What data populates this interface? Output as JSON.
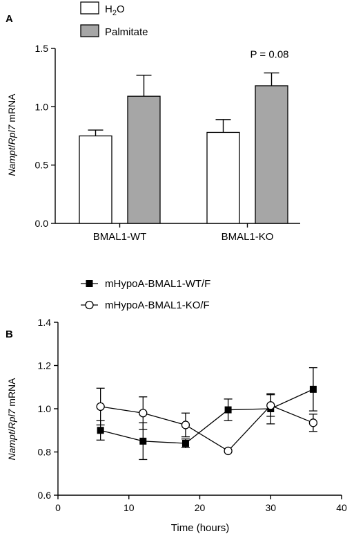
{
  "chart_data": [
    {
      "type": "bar",
      "panel_label": "A",
      "categories": [
        "BMAL1-WT",
        "BMAL1-KO"
      ],
      "series": [
        {
          "name_parts": [
            "H",
            "2",
            "O"
          ],
          "color": "#ffffff",
          "values": [
            0.75,
            0.78
          ],
          "errors": [
            0.05,
            0.11
          ]
        },
        {
          "name": "Palmitate",
          "color": "#a6a6a6",
          "values": [
            1.09,
            1.18
          ],
          "errors": [
            0.18,
            0.11
          ]
        }
      ],
      "ylabel_italic_1": "Nampt",
      "ylabel_sep": "/",
      "ylabel_italic_2": "Rpl7",
      "ylabel_plain": " mRNA",
      "ylim": [
        0,
        1.5
      ],
      "yticks": [
        "0.0",
        "0.5",
        "1.0",
        "1.5"
      ],
      "annotation": {
        "text": "P = 0.08",
        "category_index": 1,
        "series_index": 1
      },
      "legend": "top-left",
      "grid": false
    },
    {
      "type": "line",
      "panel_label": "B",
      "series": [
        {
          "name": "mHypoA-BMAL1-WT/F",
          "marker": "filled-square",
          "x": [
            6,
            12,
            18,
            24,
            30,
            36
          ],
          "y": [
            0.9,
            0.85,
            0.84,
            0.995,
            1.0,
            1.09
          ],
          "errors": [
            0.045,
            0.085,
            0.02,
            0.05,
            0.07,
            0.1
          ]
        },
        {
          "name": "mHypoA-BMAL1-KO/F",
          "marker": "open-circle",
          "x": [
            6,
            12,
            18,
            24,
            30,
            36
          ],
          "y": [
            1.01,
            0.98,
            0.925,
            0.805,
            1.015,
            0.935
          ],
          "errors": [
            0.085,
            0.075,
            0.055,
            0.0,
            0.05,
            0.04
          ]
        }
      ],
      "xlabel": "Time (hours)",
      "ylabel_italic_1": "Nampt",
      "ylabel_sep": "/",
      "ylabel_italic_2": "Rpl7",
      "ylabel_plain": " mRNA",
      "xlim": [
        0,
        40
      ],
      "ylim": [
        0.6,
        1.4
      ],
      "xticks": [
        "0",
        "10",
        "20",
        "30",
        "40"
      ],
      "yticks": [
        "0.6",
        "0.8",
        "1.0",
        "1.2",
        "1.4"
      ],
      "legend": "top-left",
      "grid": false
    }
  ]
}
